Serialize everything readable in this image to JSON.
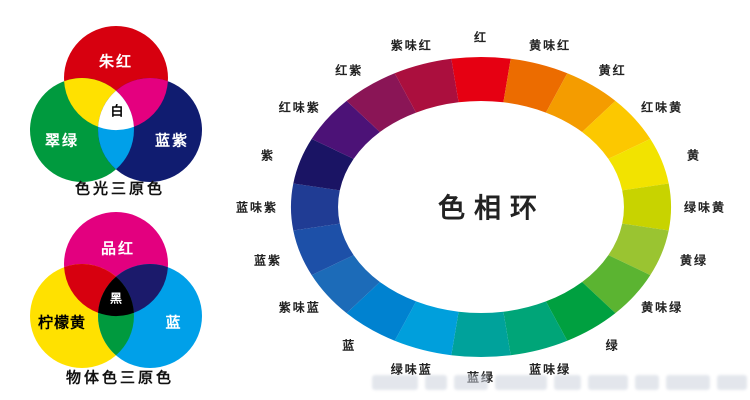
{
  "page": {
    "background": "#ffffff"
  },
  "venn_additive": {
    "caption": "色光三原色",
    "center_label": "白",
    "center_color": "#ffffff",
    "center_text_color": "#000000",
    "circles": [
      {
        "label": "朱红",
        "color": "#d7000f",
        "text_color": "#ffffff"
      },
      {
        "label": "翠绿",
        "color": "#009a3e",
        "text_color": "#ffffff"
      },
      {
        "label": "蓝紫",
        "color": "#101c70",
        "text_color": "#ffffff"
      }
    ],
    "overlaps": [
      {
        "name": "red-green-yellow",
        "color": "#ffe100"
      },
      {
        "name": "red-blue-magenta",
        "color": "#e4007f"
      },
      {
        "name": "green-blue-cyan",
        "color": "#00a0e9"
      }
    ]
  },
  "venn_subtractive": {
    "caption": "物体色三原色",
    "center_label": "黑",
    "center_color": "#000000",
    "center_text_color": "#ffffff",
    "circles": [
      {
        "label": "品红",
        "color": "#e3007f",
        "text_color": "#ffffff"
      },
      {
        "label": "柠檬黄",
        "color": "#ffe100",
        "text_color": "#000000"
      },
      {
        "label": "蓝",
        "color": "#00a0e9",
        "text_color": "#ffffff"
      }
    ],
    "overlaps": [
      {
        "name": "magenta-yellow-red",
        "color": "#d7000f"
      },
      {
        "name": "magenta-cyan-blue",
        "color": "#1b1a6b"
      },
      {
        "name": "yellow-cyan-green",
        "color": "#009a3e"
      }
    ]
  },
  "chart_data": {
    "type": "pie",
    "title": "色相环",
    "layout": {
      "ring": true,
      "start": "top",
      "direction": "clockwise",
      "segment_angle_deg": 18,
      "label_position": "around-outside"
    },
    "segments": [
      {
        "label": "红",
        "color": "#e60012"
      },
      {
        "label": "黄味红",
        "color": "#ec6c00"
      },
      {
        "label": "黄红",
        "color": "#f49c00"
      },
      {
        "label": "红味黄",
        "color": "#fcc800"
      },
      {
        "label": "黄",
        "color": "#f2e300"
      },
      {
        "label": "绿味黄",
        "color": "#c8d300"
      },
      {
        "label": "黄绿",
        "color": "#9ac431"
      },
      {
        "label": "黄味绿",
        "color": "#5bb431"
      },
      {
        "label": "绿",
        "color": "#00a040"
      },
      {
        "label": "蓝味绿",
        "color": "#00a578"
      },
      {
        "label": "蓝绿",
        "color": "#00a29b"
      },
      {
        "label": "绿味蓝",
        "color": "#009fdc"
      },
      {
        "label": "蓝",
        "color": "#0082d0"
      },
      {
        "label": "紫味蓝",
        "color": "#1c6bb8"
      },
      {
        "label": "蓝紫",
        "color": "#1d50a8"
      },
      {
        "label": "蓝味紫",
        "color": "#203c94"
      },
      {
        "label": "紫",
        "color": "#1a1464"
      },
      {
        "label": "红味紫",
        "color": "#4c1277"
      },
      {
        "label": "红紫",
        "color": "#8a1556"
      },
      {
        "label": "紫味红",
        "color": "#ab0f3e"
      }
    ]
  }
}
